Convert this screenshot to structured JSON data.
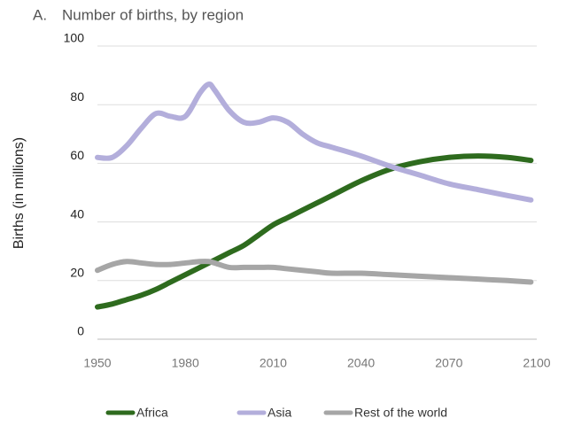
{
  "chart_data": {
    "type": "line",
    "panel_label": "A.",
    "title": "Number of births, by region",
    "y_label": "Births (in millions)",
    "x": [
      1950,
      1955,
      1960,
      1965,
      1970,
      1975,
      1980,
      1985,
      1988,
      1990,
      1995,
      2000,
      2005,
      2010,
      2015,
      2020,
      2025,
      2030,
      2040,
      2050,
      2060,
      2070,
      2080,
      2090,
      2098
    ],
    "series": [
      {
        "name": "Africa",
        "color": "#2e6b1e",
        "values": [
          11,
          12,
          13.5,
          15,
          17,
          19.5,
          22,
          24.5,
          26,
          27,
          29.5,
          32,
          35.5,
          39,
          41.5,
          44,
          46.5,
          49,
          54,
          58,
          60.5,
          62,
          62.5,
          62,
          61
        ]
      },
      {
        "name": "Asia",
        "color": "#b3aedb",
        "values": [
          62,
          62,
          66,
          72,
          77,
          76,
          76,
          84,
          87,
          85,
          78,
          74,
          74,
          75.5,
          74,
          70,
          67,
          65.5,
          62.5,
          59,
          56,
          53,
          51,
          49,
          47.5
        ]
      },
      {
        "name": "Rest of the world",
        "color": "#a6a6a6",
        "values": [
          23.5,
          25.5,
          26.5,
          26,
          25.5,
          25.5,
          26,
          26.5,
          26.5,
          26,
          24.5,
          24.5,
          24.5,
          24.5,
          24,
          23.5,
          23,
          22.5,
          22.5,
          22,
          21.5,
          21,
          20.5,
          20,
          19.5
        ]
      }
    ],
    "xlim": [
      1950,
      2100
    ],
    "xticks": [
      1950,
      1980,
      2010,
      2040,
      2070,
      2100
    ],
    "ylim": [
      0,
      100
    ],
    "yticks": [
      0,
      20,
      40,
      60,
      80,
      100
    ],
    "grid": true,
    "legend": "bottom"
  }
}
